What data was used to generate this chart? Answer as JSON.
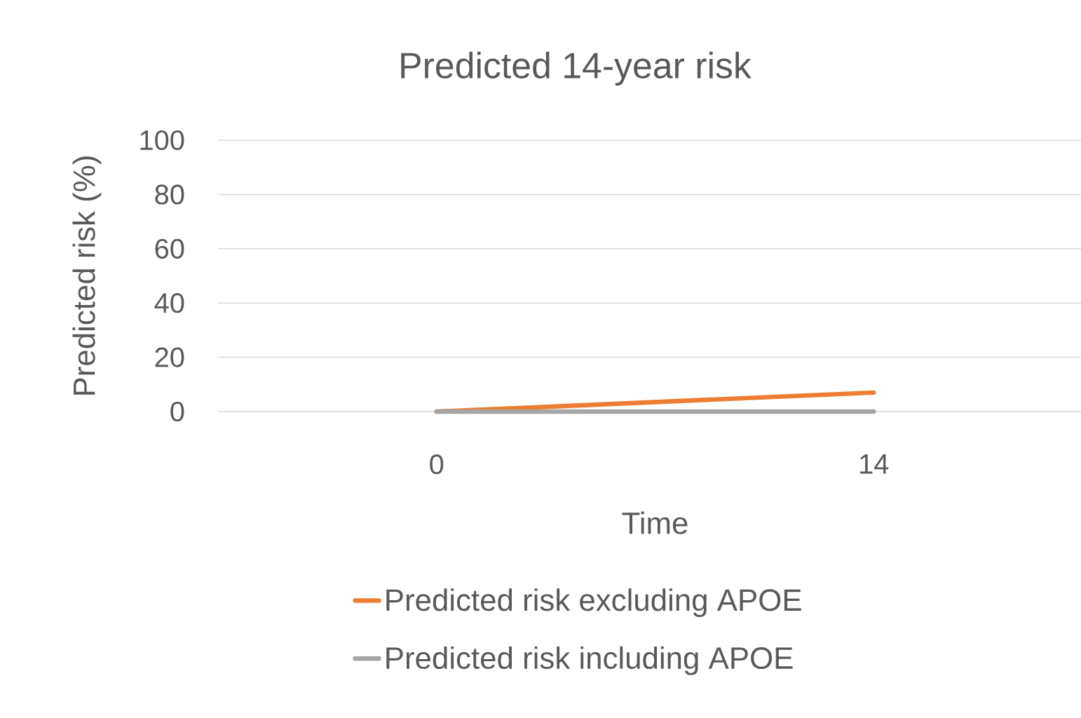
{
  "chart_data": {
    "type": "line",
    "title": "Predicted 14-year risk",
    "xlabel": "Time",
    "ylabel": "Predicted risk (%)",
    "categories": [
      "0",
      "14"
    ],
    "series": [
      {
        "name": "Predicted risk excluding APOE",
        "color": "#ed7d31",
        "values": [
          0,
          7
        ]
      },
      {
        "name": "Predicted risk including APOE",
        "color": "#a5a5a5",
        "values": [
          0,
          0
        ]
      }
    ],
    "ylim": [
      0,
      100
    ],
    "yticks": [
      0,
      20,
      40,
      60,
      80,
      100
    ],
    "grid": "y",
    "legend": "bottom",
    "marker": "none",
    "line_style": "solid"
  }
}
